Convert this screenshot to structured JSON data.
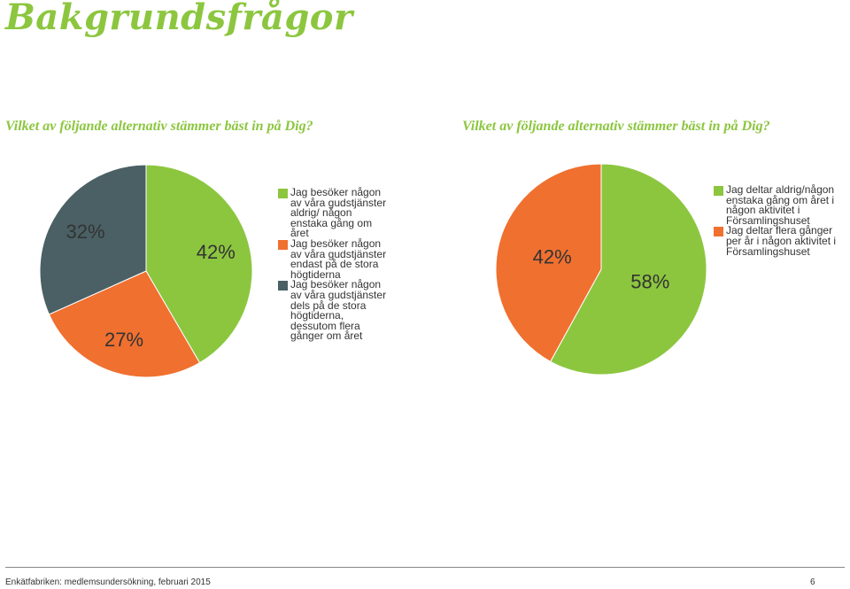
{
  "page": {
    "title": "Bakgrundsfrågor",
    "footer": "Enkätfabriken: medlemsundersökning, februari 2015",
    "page_number": "6"
  },
  "chart_data": [
    {
      "type": "pie",
      "title": "Vilket av följande alternativ stämmer bäst in på Dig?",
      "slices": [
        {
          "label": "Jag besöker någon av våra gudstjänster aldrig/ någon enstaka gång om året",
          "value": 42,
          "value_label": "42%",
          "color": "#8cc63f"
        },
        {
          "label": "Jag besöker någon av våra gudstjänster endast på de stora högtiderna",
          "value": 27,
          "value_label": "27%",
          "color": "#f07030"
        },
        {
          "label": "Jag besöker någon av våra gudstjänster dels på de stora högtiderna, dessutom flera gånger om året",
          "value": 32,
          "value_label": "32%",
          "color": "#4a6064"
        }
      ],
      "legend_position": "right"
    },
    {
      "type": "pie",
      "title": "Vilket av följande alternativ stämmer bäst in på Dig?",
      "slices": [
        {
          "label": "Jag deltar aldrig/någon enstaka gång om året i någon aktivitet i Församlingshuset",
          "value": 58,
          "value_label": "58%",
          "color": "#8cc63f"
        },
        {
          "label": "Jag deltar flera gånger per år i någon aktivitet i Församlingshuset",
          "value": 42,
          "value_label": "42%",
          "color": "#f07030"
        }
      ],
      "legend_position": "right"
    }
  ]
}
